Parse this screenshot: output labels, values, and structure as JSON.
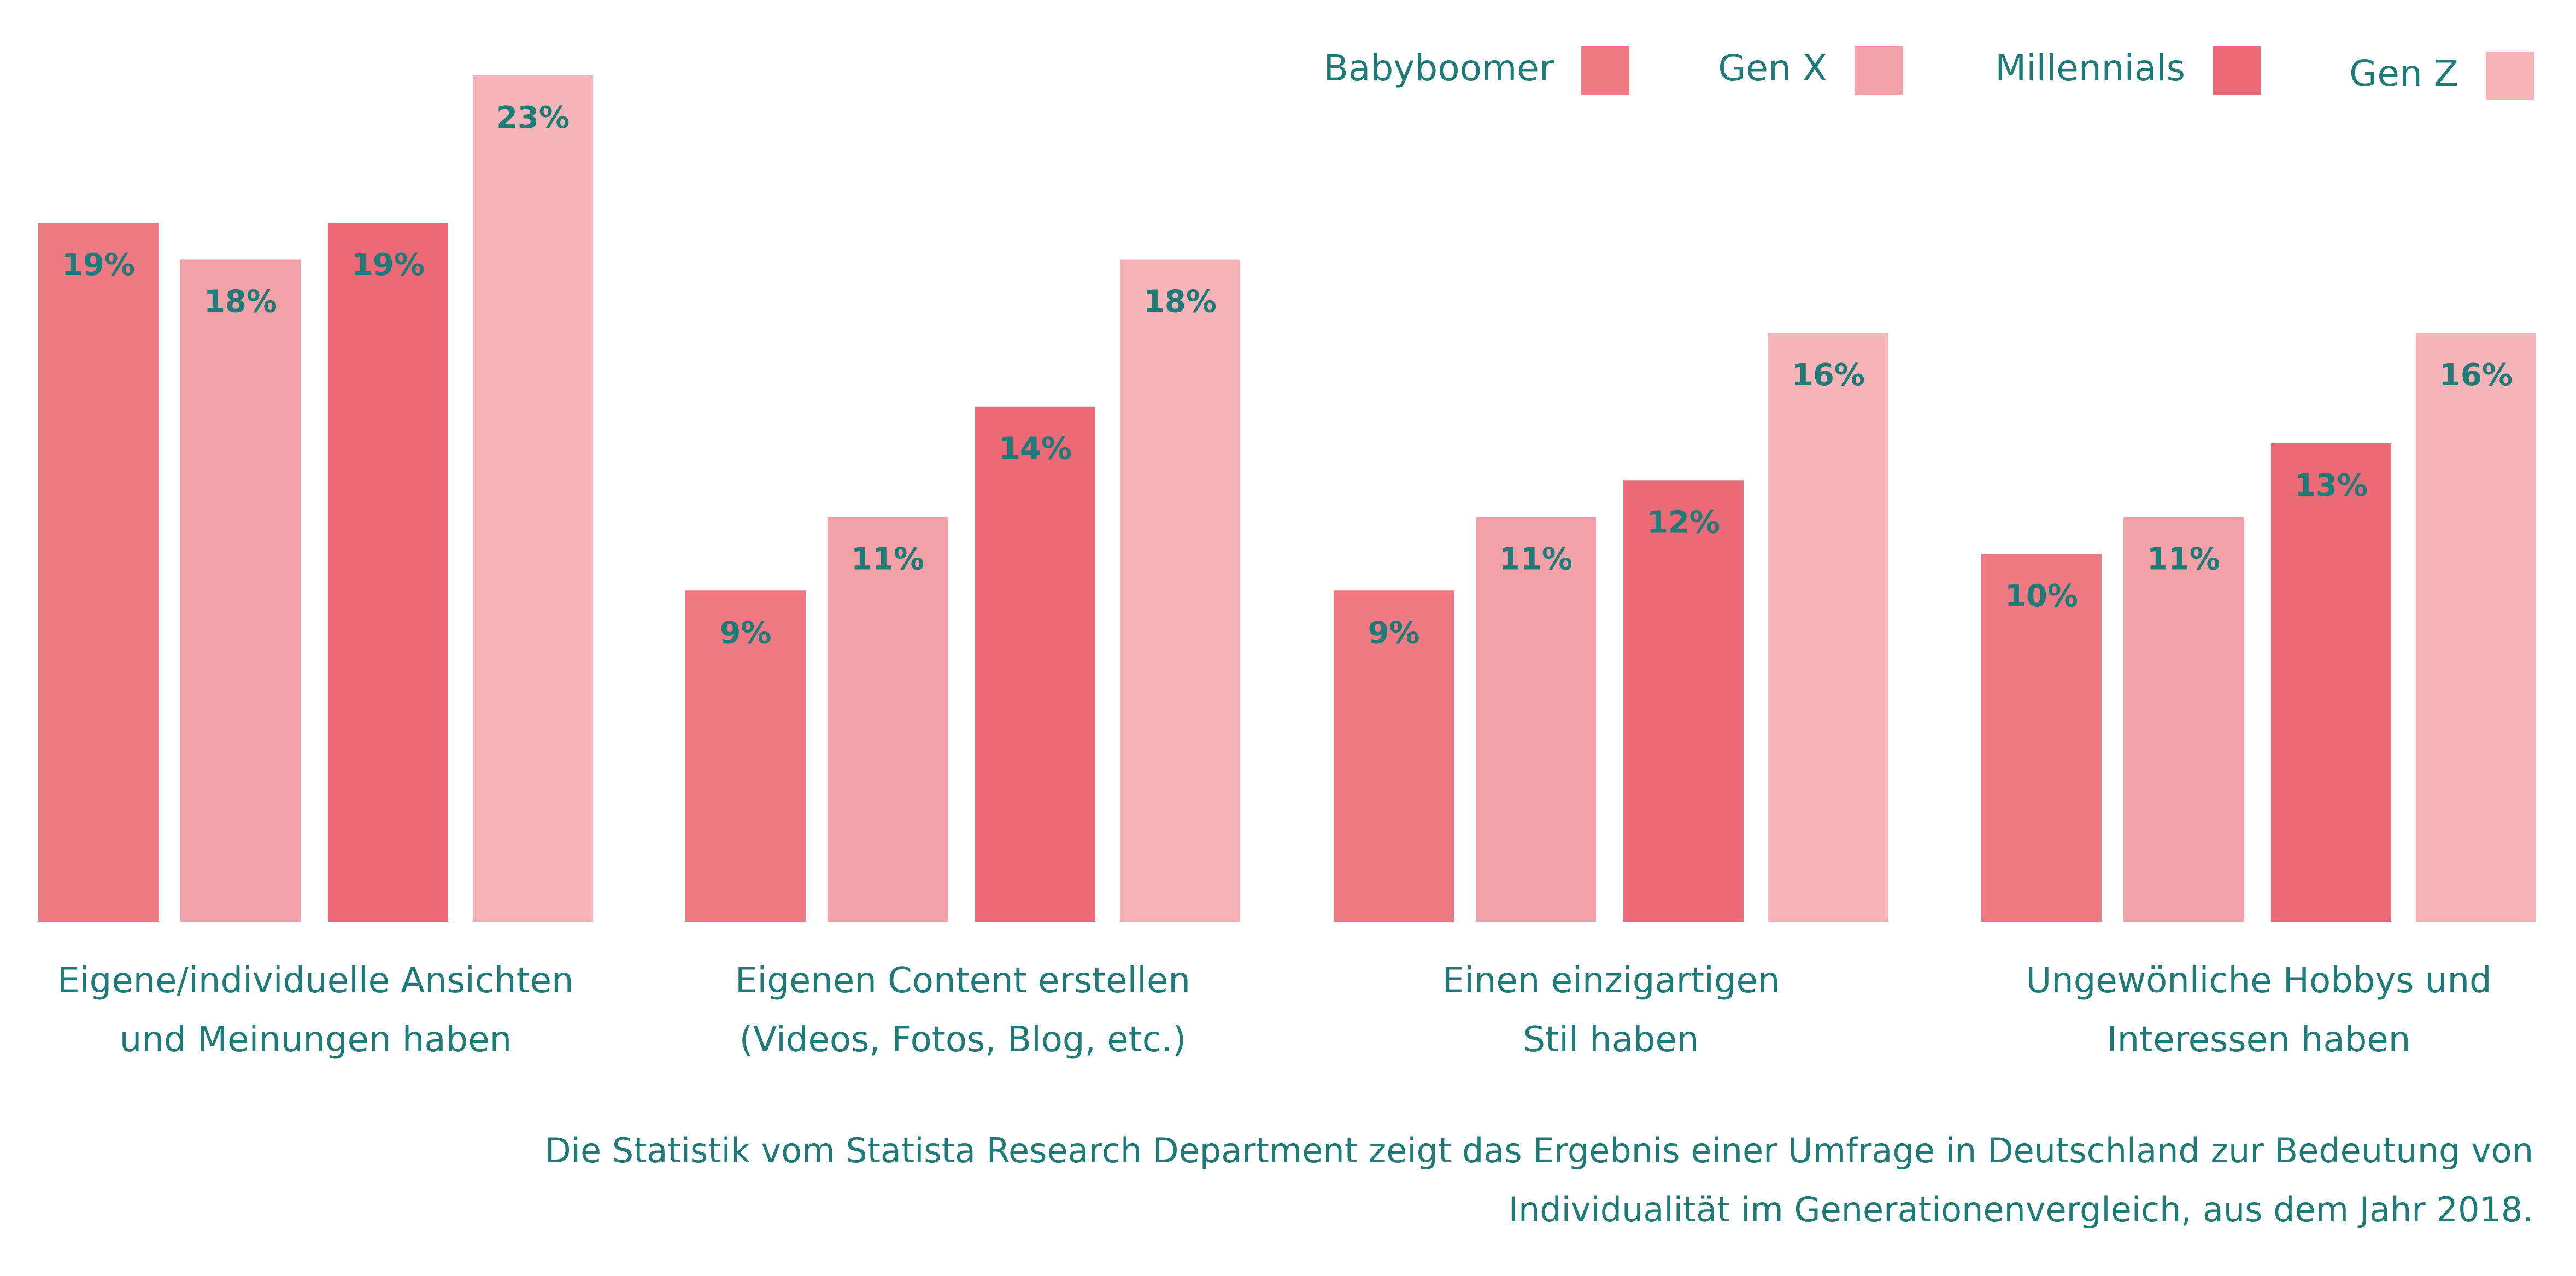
{
  "chart_data": {
    "type": "bar",
    "categories": [
      [
        "Eigene/individuelle Ansichten",
        "und Meinungen haben"
      ],
      [
        "Eigenen Content erstellen",
        "(Videos, Fotos, Blog, etc.)"
      ],
      [
        "Einen einzigartigen",
        "Stil haben"
      ],
      [
        "Ungewönliche Hobbys und",
        "Interessen haben"
      ]
    ],
    "series": [
      {
        "name": "Babyboomer",
        "color": "#ef7a84",
        "values": [
          19,
          9,
          9,
          10
        ]
      },
      {
        "name": "Gen X",
        "color": "#f3a0a6",
        "values": [
          18,
          11,
          11,
          11
        ]
      },
      {
        "name": "Millennials",
        "color": "#ec6a78",
        "values": [
          19,
          14,
          12,
          13
        ]
      },
      {
        "name": "Gen Z",
        "color": "#f6b4b8",
        "values": [
          23,
          18,
          16,
          16
        ]
      }
    ],
    "value_suffix": "%",
    "ylim": [
      0,
      23
    ],
    "grid": false,
    "legend_position": "top-right",
    "caption": [
      "Die Statistik vom Statista Research Department zeigt das Ergebnis einer Umfrage in Deutschland zur Bedeutung von",
      "Individualität im Generationenvergleich, aus dem Jahr 2018."
    ]
  }
}
